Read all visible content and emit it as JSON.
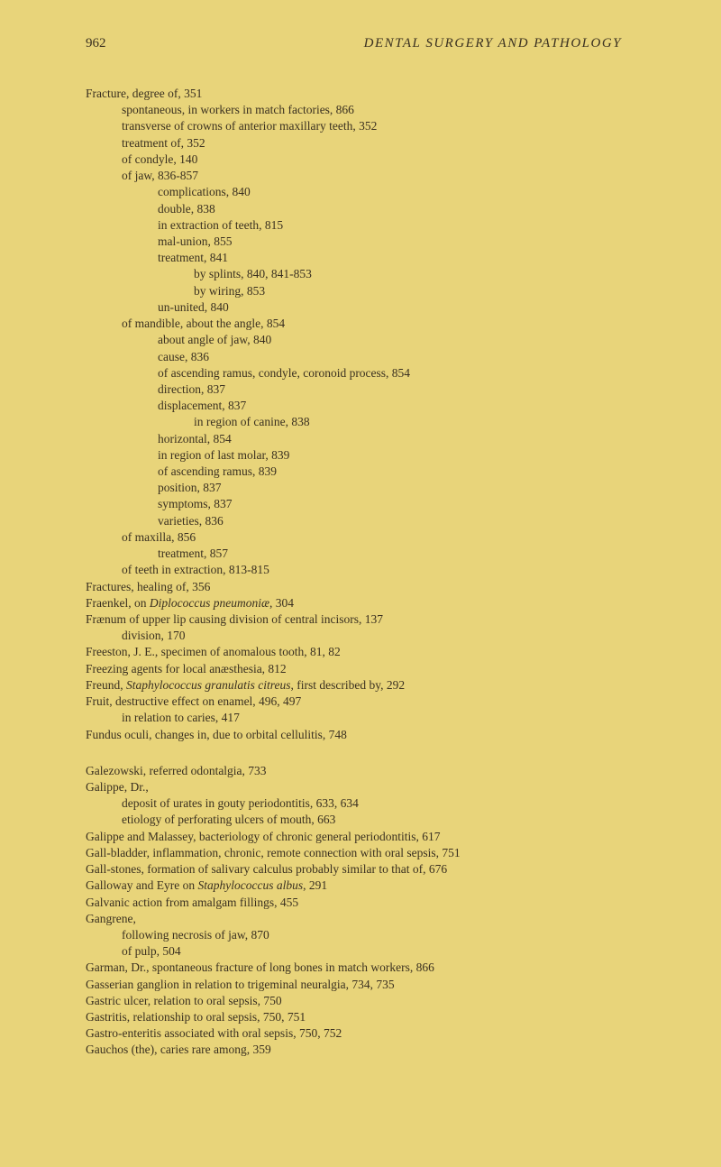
{
  "header": {
    "page_number": "962",
    "running_title": "DENTAL SURGERY AND PATHOLOGY"
  },
  "entries": [
    {
      "level": 0,
      "text": "Fracture, degree of, 351"
    },
    {
      "level": 1,
      "text": "spontaneous, in workers in match factories, 866"
    },
    {
      "level": 1,
      "text": "transverse of crowns of anterior maxillary teeth, 352"
    },
    {
      "level": 1,
      "text": "treatment of, 352"
    },
    {
      "level": 1,
      "text": "of condyle, 140"
    },
    {
      "level": 1,
      "text": "of jaw, 836-857"
    },
    {
      "level": 2,
      "text": "complications, 840"
    },
    {
      "level": 2,
      "text": "double, 838"
    },
    {
      "level": 2,
      "text": "in extraction of teeth, 815"
    },
    {
      "level": 2,
      "text": "mal-union, 855"
    },
    {
      "level": 2,
      "text": "treatment, 841"
    },
    {
      "level": 3,
      "text": "by splints, 840, 841-853"
    },
    {
      "level": 3,
      "text": "by wiring, 853"
    },
    {
      "level": 2,
      "text": "un-united, 840"
    },
    {
      "level": 1,
      "text": "of mandible, about the angle, 854"
    },
    {
      "level": 2,
      "text": "about angle of jaw, 840"
    },
    {
      "level": 2,
      "text": "cause, 836"
    },
    {
      "level": 2,
      "text": "of ascending ramus, condyle, coronoid process, 854"
    },
    {
      "level": 2,
      "text": "direction, 837"
    },
    {
      "level": 2,
      "text": "displacement, 837"
    },
    {
      "level": 3,
      "text": "in region of canine, 838"
    },
    {
      "level": 2,
      "text": "horizontal, 854"
    },
    {
      "level": 2,
      "text": "in region of last molar, 839"
    },
    {
      "level": 2,
      "text": "of ascending ramus, 839"
    },
    {
      "level": 2,
      "text": "position, 837"
    },
    {
      "level": 2,
      "text": "symptoms, 837"
    },
    {
      "level": 2,
      "text": "varieties, 836"
    },
    {
      "level": 1,
      "text": "of maxilla, 856"
    },
    {
      "level": 2,
      "text": "treatment, 857"
    },
    {
      "level": 1,
      "text": "of teeth in extraction, 813-815"
    },
    {
      "level": 0,
      "text": "Fractures, healing of, 356"
    },
    {
      "level": 0,
      "html": "Fraenkel, on <span class=\"italic\">Diplococcus pneumoniæ</span>, 304"
    },
    {
      "level": 0,
      "text": "Frænum of upper lip causing division of central incisors, 137"
    },
    {
      "level": 1,
      "text": "division, 170"
    },
    {
      "level": 0,
      "text": "Freeston, J. E., specimen of anomalous tooth, 81, 82"
    },
    {
      "level": 0,
      "text": "Freezing agents for local anæsthesia, 812"
    },
    {
      "level": 0,
      "html": "Freund, <span class=\"italic\">Staphylococcus granulatis citreus</span>, first described by, 292"
    },
    {
      "level": 0,
      "text": "Fruit, destructive effect on enamel, 496, 497"
    },
    {
      "level": 1,
      "text": "in relation to caries, 417"
    },
    {
      "level": 0,
      "text": "Fundus oculi, changes in, due to orbital cellulitis, 748"
    },
    {
      "level": 0,
      "gap": true,
      "text": "Galezowski, referred odontalgia, 733"
    },
    {
      "level": 0,
      "text": "Galippe, Dr.,"
    },
    {
      "level": 1,
      "text": "deposit of urates in gouty periodontitis, 633, 634"
    },
    {
      "level": 1,
      "text": "etiology of perforating ulcers of mouth, 663"
    },
    {
      "level": 0,
      "text": "Galippe and Malassey, bacteriology of chronic general periodontitis, 617"
    },
    {
      "level": 0,
      "text": "Gall-bladder, inflammation, chronic, remote connection with oral sepsis, 751"
    },
    {
      "level": 0,
      "text": "Gall-stones, formation of salivary calculus probably similar to that of, 676"
    },
    {
      "level": 0,
      "html": "Galloway and Eyre on <span class=\"italic\">Staphylococcus albus</span>, 291"
    },
    {
      "level": 0,
      "text": "Galvanic action from amalgam fillings, 455"
    },
    {
      "level": 0,
      "text": "Gangrene,"
    },
    {
      "level": 1,
      "text": "following necrosis of jaw, 870"
    },
    {
      "level": 1,
      "text": "of pulp, 504"
    },
    {
      "level": 0,
      "text": "Garman, Dr., spontaneous fracture of long bones in match workers, 866"
    },
    {
      "level": 0,
      "text": "Gasserian ganglion in relation to trigeminal neuralgia, 734, 735"
    },
    {
      "level": 0,
      "text": "Gastric ulcer, relation to oral sepsis, 750"
    },
    {
      "level": 0,
      "text": "Gastritis, relationship to oral sepsis, 750, 751"
    },
    {
      "level": 0,
      "text": "Gastro-enteritis associated with oral sepsis, 750, 752"
    },
    {
      "level": 0,
      "text": "Gauchos (the), caries rare among, 359"
    }
  ],
  "colors": {
    "background": "#e8d47a",
    "text": "#3a3020"
  },
  "typography": {
    "body_font_size": 13.5,
    "header_font_size": 15
  }
}
